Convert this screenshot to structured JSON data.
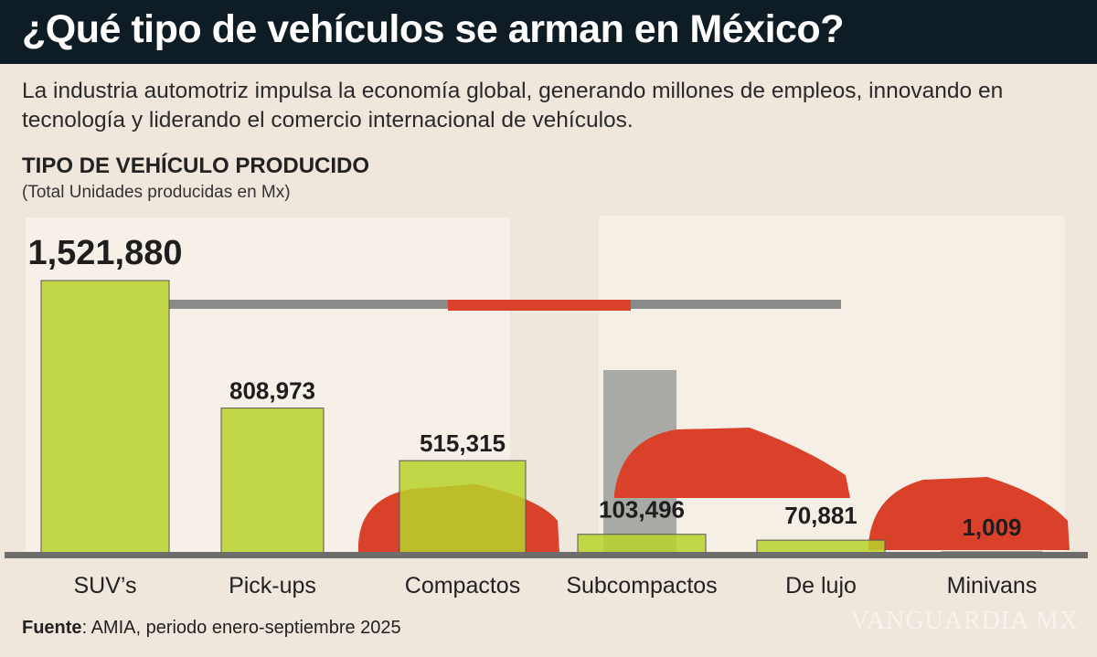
{
  "header": {
    "title": "¿Qué tipo de vehículos se arman en México?"
  },
  "subtitle": "La industria automotriz impulsa la economía global, generando millones de empleos, innovando en tecnología y liderando el comercio internacional de vehículos.",
  "source": {
    "label": "Fuente",
    "text": ": AMIA, periodo enero-septiembre 2025"
  },
  "watermark": "VANGUARDIA MX",
  "colors": {
    "bar": "#b7d22a",
    "header": "#0e1c26",
    "car": "#d9412a",
    "background": "#efe7dc"
  },
  "chart_data": {
    "type": "bar",
    "title": "TIPO DE VEHÍCULO PRODUCIDO",
    "subtitle": "(Total Unidades producidas en Mx)",
    "categories": [
      "SUV’s",
      "Pick-ups",
      "Compactos",
      "Subcompactos",
      "De lujo",
      "Minivans"
    ],
    "values": [
      1521880,
      808973,
      515315,
      103496,
      70881,
      1009
    ],
    "labels": [
      "1,521,880",
      "808,973",
      "515,315",
      "103,496",
      "70,881",
      "1,009"
    ],
    "ylim": [
      0,
      1521880
    ],
    "grid": false
  }
}
